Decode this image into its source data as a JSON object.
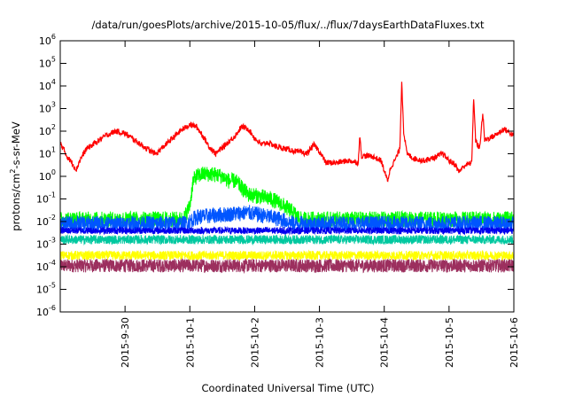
{
  "chart_data": {
    "type": "line",
    "title": "/data/run/goesPlots/archive/2015-10-05/flux/../flux/7daysEarthDataFluxes.txt",
    "xlabel": "Coordinated Universal Time (UTC)",
    "ylabel_prefix": "protons/cm",
    "ylabel_sup": "2",
    "ylabel_suffix": "-s-sr-MeV",
    "y_scale": "log",
    "ylim_exponents": [
      -6,
      6
    ],
    "y_tick_base": "10",
    "y_tick_exponents": [
      "-6",
      "-5",
      "-4",
      "-3",
      "-2",
      "-1",
      "0",
      "1",
      "2",
      "3",
      "4",
      "5",
      "6"
    ],
    "xlim_days": [
      0,
      7
    ],
    "x_ticks": [
      {
        "day": 1,
        "label": "2015-9-30"
      },
      {
        "day": 2,
        "label": "2015-10-1"
      },
      {
        "day": 3,
        "label": "2015-10-2"
      },
      {
        "day": 4,
        "label": "2015-10-3"
      },
      {
        "day": 5,
        "label": "2015-10-4"
      },
      {
        "day": 6,
        "label": "2015-10-5"
      },
      {
        "day": 7,
        "label": "2015-10-6"
      }
    ],
    "grid": false,
    "series": [
      {
        "color": "#ff0000",
        "kind": "line",
        "points": [
          [
            0.0,
            1.5
          ],
          [
            0.1,
            0.9
          ],
          [
            0.18,
            0.6
          ],
          [
            0.25,
            0.3
          ],
          [
            0.3,
            0.7
          ],
          [
            0.4,
            1.2
          ],
          [
            0.55,
            1.5
          ],
          [
            0.7,
            1.8
          ],
          [
            0.85,
            2.0
          ],
          [
            1.0,
            1.9
          ],
          [
            1.15,
            1.6
          ],
          [
            1.3,
            1.3
          ],
          [
            1.4,
            1.1
          ],
          [
            1.48,
            1.0
          ],
          [
            1.55,
            1.2
          ],
          [
            1.7,
            1.6
          ],
          [
            1.85,
            2.0
          ],
          [
            2.0,
            2.3
          ],
          [
            2.1,
            2.2
          ],
          [
            2.2,
            1.8
          ],
          [
            2.3,
            1.3
          ],
          [
            2.4,
            1.0
          ],
          [
            2.55,
            1.4
          ],
          [
            2.7,
            1.8
          ],
          [
            2.8,
            2.2
          ],
          [
            2.9,
            2.1
          ],
          [
            3.0,
            1.7
          ],
          [
            3.1,
            1.4
          ],
          [
            3.2,
            1.5
          ],
          [
            3.35,
            1.3
          ],
          [
            3.5,
            1.2
          ],
          [
            3.65,
            1.1
          ],
          [
            3.8,
            1.0
          ],
          [
            3.92,
            1.4
          ],
          [
            4.0,
            1.1
          ],
          [
            4.1,
            0.6
          ],
          [
            4.25,
            0.6
          ],
          [
            4.45,
            0.7
          ],
          [
            4.6,
            0.6
          ],
          [
            4.62,
            1.8
          ],
          [
            4.65,
            0.9
          ],
          [
            4.8,
            0.9
          ],
          [
            4.95,
            0.7
          ],
          [
            5.05,
            -0.2
          ],
          [
            5.1,
            0.4
          ],
          [
            5.18,
            0.8
          ],
          [
            5.24,
            1.2
          ],
          [
            5.27,
            4.2
          ],
          [
            5.3,
            2.0
          ],
          [
            5.35,
            1.0
          ],
          [
            5.45,
            0.8
          ],
          [
            5.6,
            0.7
          ],
          [
            5.75,
            0.8
          ],
          [
            5.9,
            1.0
          ],
          [
            6.0,
            0.7
          ],
          [
            6.1,
            0.5
          ],
          [
            6.15,
            0.2
          ],
          [
            6.25,
            0.5
          ],
          [
            6.35,
            0.6
          ],
          [
            6.38,
            3.5
          ],
          [
            6.41,
            1.6
          ],
          [
            6.47,
            1.2
          ],
          [
            6.52,
            2.8
          ],
          [
            6.55,
            1.6
          ],
          [
            6.7,
            1.8
          ],
          [
            6.85,
            2.1
          ],
          [
            7.0,
            1.8
          ]
        ]
      },
      {
        "color": "#00ff00",
        "kind": "band",
        "points": [
          [
            0.0,
            -1.9
          ],
          [
            1.9,
            -1.9
          ],
          [
            2.0,
            -1.3
          ],
          [
            2.05,
            -0.2
          ],
          [
            2.1,
            0.0
          ],
          [
            2.2,
            0.1
          ],
          [
            2.35,
            0.1
          ],
          [
            2.5,
            0.0
          ],
          [
            2.6,
            -0.2
          ],
          [
            2.7,
            -0.2
          ],
          [
            2.8,
            -0.5
          ],
          [
            2.9,
            -0.8
          ],
          [
            3.1,
            -0.9
          ],
          [
            3.25,
            -1.0
          ],
          [
            3.4,
            -1.2
          ],
          [
            3.6,
            -1.6
          ],
          [
            3.7,
            -1.9
          ],
          [
            7.0,
            -1.9
          ]
        ],
        "halfwidth": 0.35
      },
      {
        "color": "#0055ff",
        "kind": "band",
        "points": [
          [
            0.0,
            -2.1
          ],
          [
            1.95,
            -2.1
          ],
          [
            2.1,
            -1.8
          ],
          [
            2.5,
            -1.7
          ],
          [
            2.9,
            -1.6
          ],
          [
            3.4,
            -1.9
          ],
          [
            3.6,
            -2.1
          ],
          [
            7.0,
            -2.1
          ]
        ],
        "halfwidth": 0.35
      },
      {
        "color": "#00c8a0",
        "kind": "band",
        "points": [
          [
            0.0,
            -2.8
          ],
          [
            7.0,
            -2.8
          ]
        ],
        "halfwidth": 0.2
      },
      {
        "color": "#0000ee",
        "kind": "band",
        "points": [
          [
            0.0,
            -2.4
          ],
          [
            7.0,
            -2.4
          ]
        ],
        "halfwidth": 0.15
      },
      {
        "color": "#ffff00",
        "kind": "band",
        "points": [
          [
            0.0,
            -3.5
          ],
          [
            7.0,
            -3.5
          ]
        ],
        "halfwidth": 0.2
      },
      {
        "color": "#9c2f5e",
        "kind": "band",
        "points": [
          [
            0.0,
            -3.95
          ],
          [
            7.0,
            -3.95
          ]
        ],
        "halfwidth": 0.3
      }
    ]
  }
}
